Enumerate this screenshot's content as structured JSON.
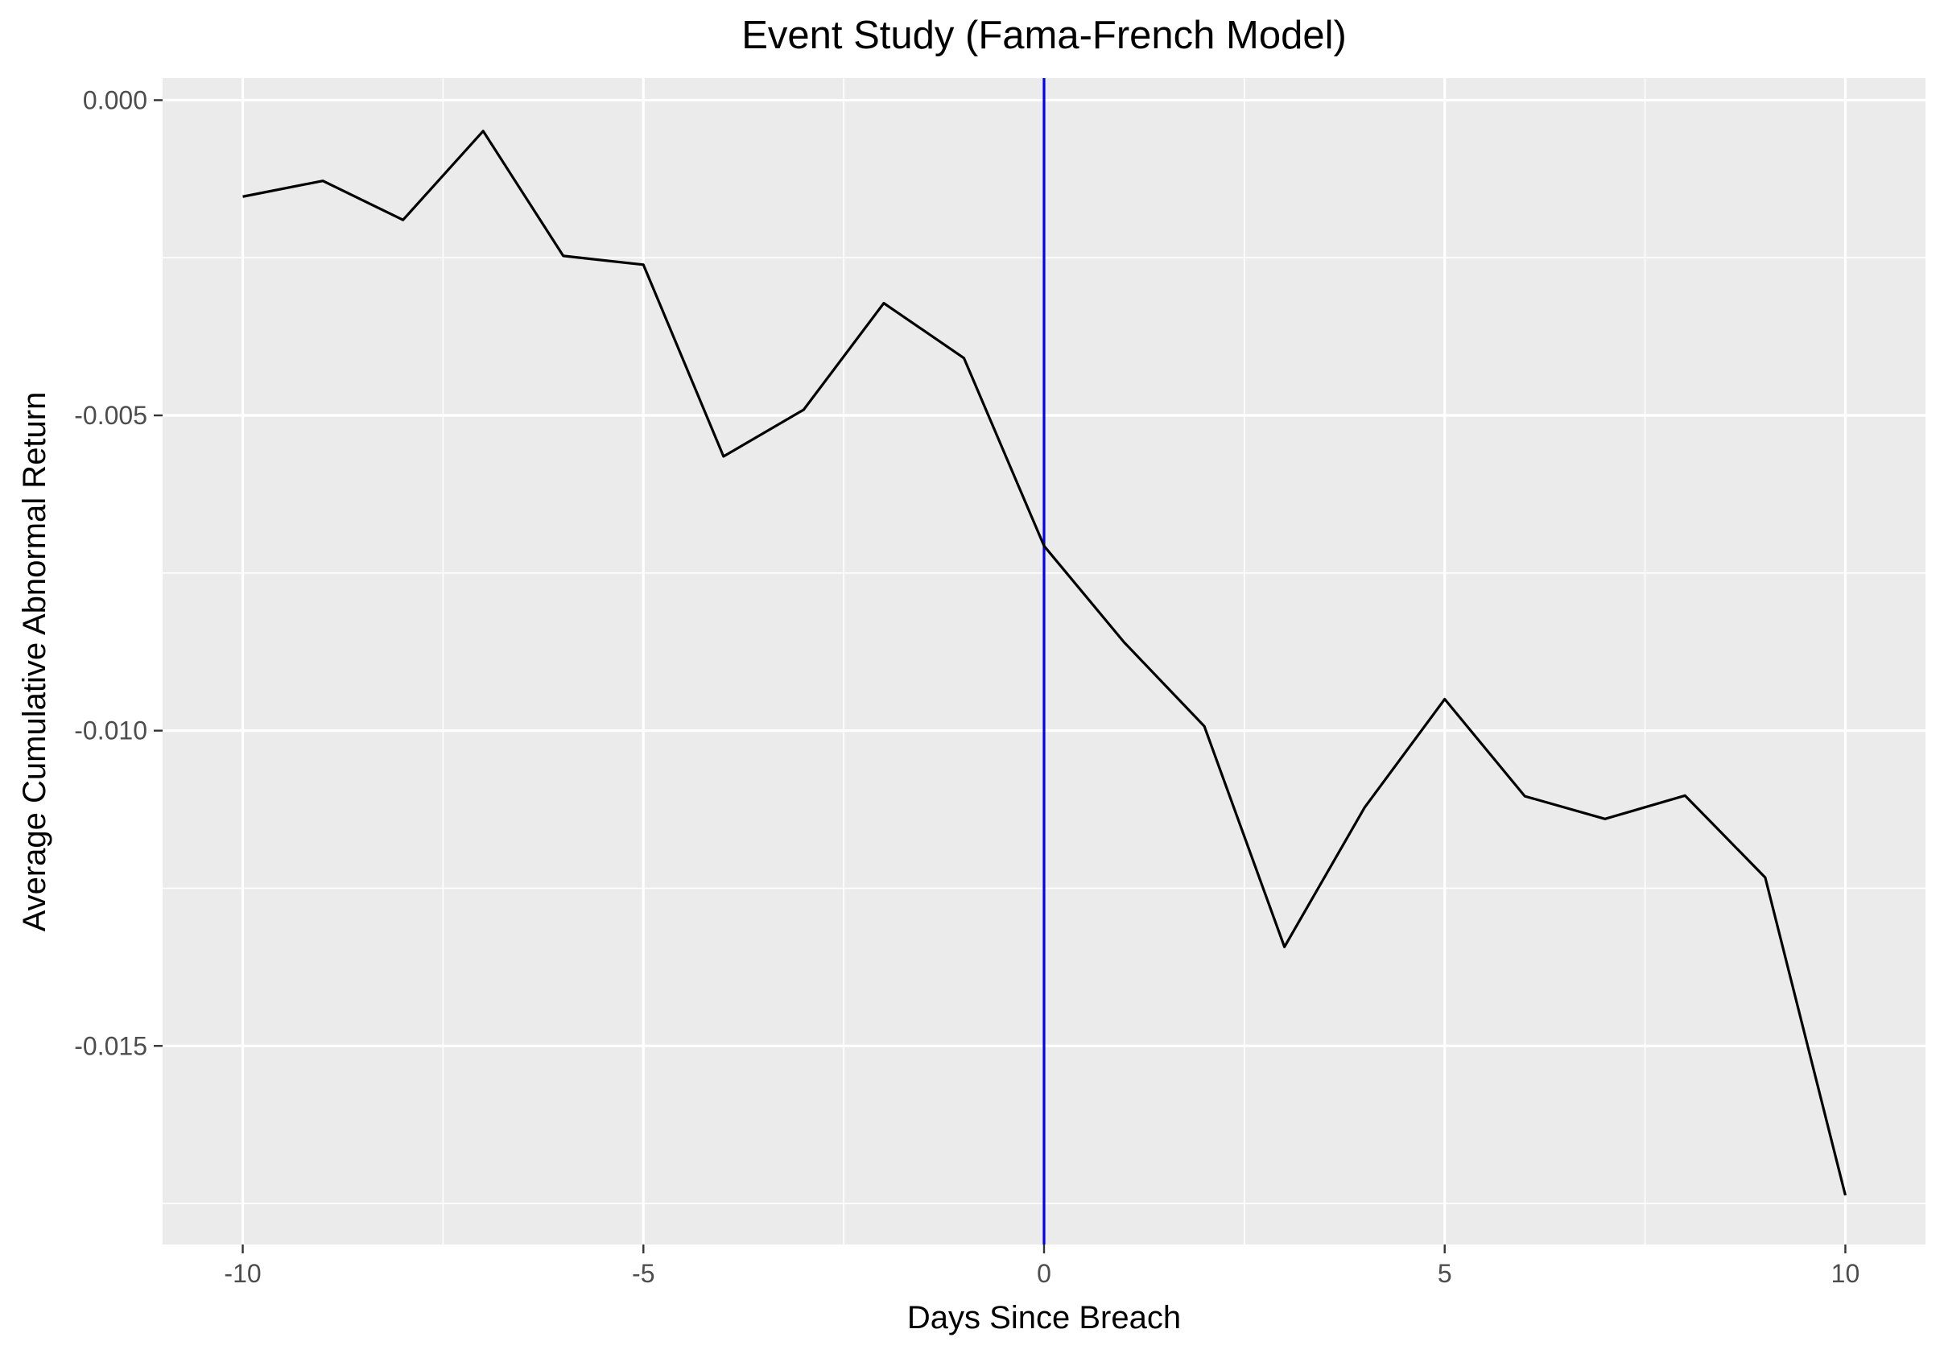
{
  "chart_data": {
    "type": "line",
    "title": "Event Study (Fama-French Model)",
    "xlabel": "Days Since Breach",
    "ylabel": "Average Cumulative Abnormal Return",
    "xlim": [
      -11,
      11
    ],
    "ylim": [
      -0.01815,
      0.00035
    ],
    "x_ticks": [
      -10,
      -5,
      0,
      5,
      10
    ],
    "x_tick_labels": [
      "-10",
      "-5",
      "0",
      "5",
      "10"
    ],
    "x_minor": [
      -7.5,
      -2.5,
      2.5,
      7.5
    ],
    "y_ticks": [
      0.0,
      -0.005,
      -0.01,
      -0.015
    ],
    "y_tick_labels": [
      "0.000",
      "-0.005",
      "-0.010",
      "-0.015"
    ],
    "y_minor": [
      -0.0025,
      -0.0075,
      -0.0125,
      -0.0175
    ],
    "grid": true,
    "background": "#ebebeb",
    "vline": {
      "x": 0,
      "color": "#0000ff"
    },
    "series": [
      {
        "color": "#000000",
        "x": [
          -10,
          -9,
          -8,
          -7,
          -6,
          -5,
          -4,
          -3,
          -2,
          -1,
          0,
          1,
          2,
          3,
          4,
          5,
          6,
          7,
          8,
          9,
          10
        ],
        "y": [
          -0.00153,
          -0.00128,
          -0.0019,
          -0.00049,
          -0.00247,
          -0.00261,
          -0.00565,
          -0.00491,
          -0.00322,
          -0.00409,
          -0.00707,
          -0.0086,
          -0.00993,
          -0.01343,
          -0.01122,
          -0.0095,
          -0.01104,
          -0.0114,
          -0.01103,
          -0.01233,
          -0.01737
        ]
      }
    ]
  }
}
